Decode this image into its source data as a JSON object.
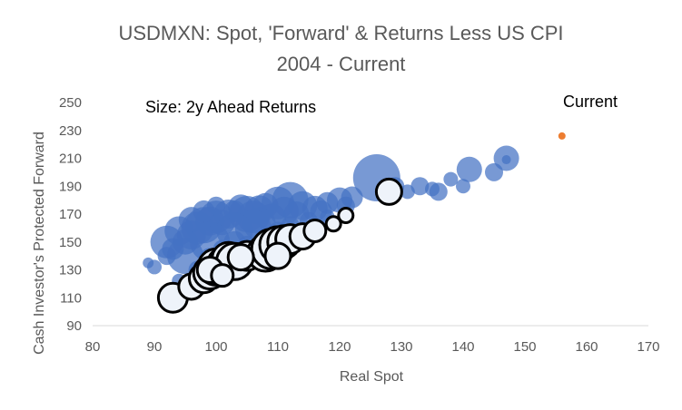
{
  "chart_data": {
    "type": "scatter",
    "title": "USDMXN: Spot, 'Forward' & Returns Less US CPI",
    "subtitle": "2004 - Current",
    "xlabel": "Real Spot",
    "ylabel": "Cash Investor's Protected Forward",
    "xlim": [
      80,
      170
    ],
    "ylim": [
      90,
      250
    ],
    "xticks": [
      80,
      90,
      100,
      110,
      120,
      130,
      140,
      150,
      160,
      170
    ],
    "yticks": [
      90,
      110,
      130,
      150,
      170,
      190,
      210,
      230,
      250
    ],
    "grid": false,
    "annotations": [
      "Size: 2y Ahead Returns",
      "Current"
    ],
    "colors": {
      "blue": "#4472C4",
      "white": "#EEF3FA",
      "orange": "#ED7D31"
    },
    "series": [
      {
        "style": "blue",
        "points": [
          [
            89,
            135,
            6
          ],
          [
            90,
            132,
            8
          ],
          [
            92,
            140,
            10
          ],
          [
            93,
            145,
            12
          ],
          [
            95,
            150,
            14
          ],
          [
            96,
            155,
            16
          ],
          [
            97,
            160,
            18
          ],
          [
            98,
            162,
            20
          ],
          [
            99,
            165,
            16
          ],
          [
            100,
            168,
            18
          ],
          [
            101,
            164,
            14
          ],
          [
            102,
            170,
            16
          ],
          [
            103,
            172,
            12
          ],
          [
            104,
            175,
            14
          ],
          [
            105,
            170,
            20
          ],
          [
            106,
            168,
            18
          ],
          [
            107,
            173,
            16
          ],
          [
            108,
            176,
            14
          ],
          [
            110,
            178,
            18
          ],
          [
            112,
            180,
            20
          ],
          [
            114,
            176,
            16
          ],
          [
            116,
            174,
            14
          ],
          [
            118,
            178,
            12
          ],
          [
            120,
            180,
            14
          ],
          [
            122,
            182,
            12
          ],
          [
            126,
            196,
            26
          ],
          [
            129,
            190,
            10
          ],
          [
            131,
            186,
            8
          ],
          [
            133,
            190,
            10
          ],
          [
            135,
            188,
            8
          ],
          [
            136,
            186,
            10
          ],
          [
            138,
            195,
            8
          ],
          [
            140,
            190,
            8
          ],
          [
            141,
            202,
            14
          ],
          [
            145,
            200,
            10
          ],
          [
            147,
            210,
            14
          ],
          [
            147,
            209,
            5
          ],
          [
            94,
            122,
            8
          ],
          [
            97,
            130,
            10
          ],
          [
            99,
            138,
            12
          ],
          [
            101,
            145,
            10
          ],
          [
            103,
            150,
            12
          ],
          [
            105,
            148,
            10
          ],
          [
            108,
            152,
            12
          ],
          [
            110,
            158,
            10
          ],
          [
            112,
            162,
            10
          ],
          [
            115,
            165,
            10
          ],
          [
            118,
            168,
            8
          ],
          [
            100,
            128,
            14
          ],
          [
            104,
            140,
            12
          ],
          [
            92,
            150,
            18
          ],
          [
            94,
            158,
            16
          ],
          [
            96,
            166,
            14
          ],
          [
            98,
            172,
            12
          ],
          [
            100,
            176,
            10
          ],
          [
            106,
            160,
            20
          ],
          [
            109,
            167,
            16
          ],
          [
            113,
            170,
            14
          ],
          [
            117,
            172,
            12
          ],
          [
            121,
            176,
            10
          ],
          [
            95,
            140,
            20
          ],
          [
            99,
            150,
            22
          ],
          [
            103,
            158,
            20
          ],
          [
            107,
            163,
            18
          ],
          [
            111,
            172,
            16
          ]
        ]
      },
      {
        "style": "white",
        "points": [
          [
            93,
            110,
            16
          ],
          [
            96,
            118,
            14
          ],
          [
            98,
            124,
            16
          ],
          [
            99,
            128,
            18
          ],
          [
            100,
            132,
            20
          ],
          [
            101,
            135,
            16
          ],
          [
            102,
            138,
            18
          ],
          [
            103,
            136,
            20
          ],
          [
            105,
            140,
            16
          ],
          [
            108,
            142,
            20
          ],
          [
            109,
            145,
            22
          ],
          [
            110,
            148,
            20
          ],
          [
            111,
            150,
            18
          ],
          [
            112,
            152,
            16
          ],
          [
            114,
            154,
            14
          ],
          [
            116,
            158,
            12
          ],
          [
            119,
            163,
            8
          ],
          [
            121,
            169,
            8
          ],
          [
            128,
            186,
            14
          ],
          [
            99,
            130,
            14
          ],
          [
            101,
            126,
            12
          ],
          [
            104,
            139,
            14
          ],
          [
            110,
            140,
            14
          ]
        ]
      },
      {
        "style": "orange",
        "points": [
          [
            156,
            226,
            4
          ]
        ]
      }
    ]
  }
}
